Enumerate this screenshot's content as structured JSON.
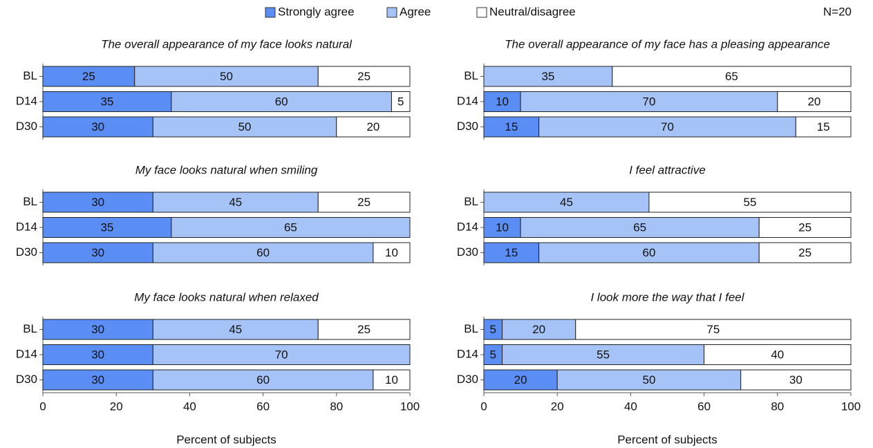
{
  "note": "N=20",
  "chart_data": [
    {
      "type": "bar",
      "orientation": "horizontal",
      "stacked": true,
      "title": "The overall appearance of my face looks natural",
      "categories": [
        "BL",
        "D14",
        "D30"
      ],
      "xlim": [
        0,
        100
      ],
      "series": [
        {
          "name": "Strongly agree",
          "color": "#5b8ef5",
          "values": [
            25,
            35,
            30
          ]
        },
        {
          "name": "Agree",
          "color": "#a6c3f7",
          "values": [
            50,
            60,
            50
          ]
        },
        {
          "name": "Neutral/disagree",
          "color": "#ffffff",
          "values": [
            25,
            5,
            20
          ]
        }
      ]
    },
    {
      "type": "bar",
      "orientation": "horizontal",
      "stacked": true,
      "title": "The overall appearance of my face has a pleasing appearance",
      "categories": [
        "BL",
        "D14",
        "D30"
      ],
      "xlim": [
        0,
        100
      ],
      "series": [
        {
          "name": "Strongly agree",
          "color": "#5b8ef5",
          "values": [
            0,
            10,
            15
          ]
        },
        {
          "name": "Agree",
          "color": "#a6c3f7",
          "values": [
            35,
            70,
            70
          ]
        },
        {
          "name": "Neutral/disagree",
          "color": "#ffffff",
          "values": [
            65,
            20,
            15
          ]
        }
      ]
    },
    {
      "type": "bar",
      "orientation": "horizontal",
      "stacked": true,
      "title": "My face looks natural when smiling",
      "categories": [
        "BL",
        "D14",
        "D30"
      ],
      "xlim": [
        0,
        100
      ],
      "series": [
        {
          "name": "Strongly agree",
          "color": "#5b8ef5",
          "values": [
            30,
            35,
            30
          ]
        },
        {
          "name": "Agree",
          "color": "#a6c3f7",
          "values": [
            45,
            65,
            60
          ]
        },
        {
          "name": "Neutral/disagree",
          "color": "#ffffff",
          "values": [
            25,
            0,
            10
          ]
        }
      ]
    },
    {
      "type": "bar",
      "orientation": "horizontal",
      "stacked": true,
      "title": "I feel attractive",
      "categories": [
        "BL",
        "D14",
        "D30"
      ],
      "xlim": [
        0,
        100
      ],
      "series": [
        {
          "name": "Strongly agree",
          "color": "#5b8ef5",
          "values": [
            0,
            10,
            15
          ]
        },
        {
          "name": "Agree",
          "color": "#a6c3f7",
          "values": [
            45,
            65,
            60
          ]
        },
        {
          "name": "Neutral/disagree",
          "color": "#ffffff",
          "values": [
            55,
            25,
            25
          ]
        }
      ]
    },
    {
      "type": "bar",
      "orientation": "horizontal",
      "stacked": true,
      "title": "My face looks natural when relaxed",
      "categories": [
        "BL",
        "D14",
        "D30"
      ],
      "xlim": [
        0,
        100
      ],
      "xticks": [
        0,
        20,
        40,
        60,
        80,
        100
      ],
      "xlabel": "Percent of subjects",
      "series": [
        {
          "name": "Strongly agree",
          "color": "#5b8ef5",
          "values": [
            30,
            30,
            30
          ]
        },
        {
          "name": "Agree",
          "color": "#a6c3f7",
          "values": [
            45,
            70,
            60
          ]
        },
        {
          "name": "Neutral/disagree",
          "color": "#ffffff",
          "values": [
            25,
            0,
            10
          ]
        }
      ]
    },
    {
      "type": "bar",
      "orientation": "horizontal",
      "stacked": true,
      "title": "I look more the way that I feel",
      "categories": [
        "BL",
        "D14",
        "D30"
      ],
      "xlim": [
        0,
        100
      ],
      "xticks": [
        0,
        20,
        40,
        60,
        80,
        100
      ],
      "xlabel": "Percent of subjects",
      "series": [
        {
          "name": "Strongly agree",
          "color": "#5b8ef5",
          "values": [
            5,
            5,
            20
          ]
        },
        {
          "name": "Agree",
          "color": "#a6c3f7",
          "values": [
            20,
            55,
            50
          ]
        },
        {
          "name": "Neutral/disagree",
          "color": "#ffffff",
          "values": [
            75,
            40,
            30
          ]
        }
      ]
    }
  ]
}
